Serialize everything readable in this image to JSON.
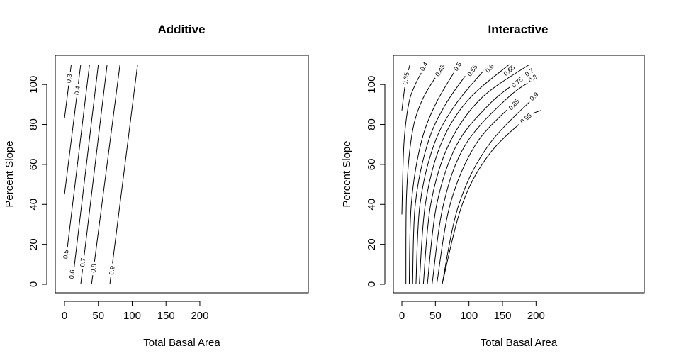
{
  "chart_data": [
    {
      "type": "contour",
      "title": "Additive",
      "xlabel": "Total Basal Area",
      "ylabel": "Percent Slope",
      "xlim": [
        0,
        210
      ],
      "ylim": [
        0,
        110
      ],
      "xticks": [
        0,
        50,
        100,
        150,
        200
      ],
      "yticks": [
        0,
        20,
        40,
        60,
        80,
        100
      ],
      "xtick_labels": [
        "0",
        "50",
        "100",
        "150",
        "200"
      ],
      "ytick_labels": [
        "0",
        "20",
        "40",
        "60",
        "80",
        "100"
      ],
      "levels": [
        {
          "label": "0.3",
          "points": [
            [
              0,
              83
            ],
            [
              10,
              110
            ]
          ],
          "label_at": [
            7,
            103
          ]
        },
        {
          "label": "0.4",
          "points": [
            [
              0,
              45
            ],
            [
              24,
              110
            ]
          ],
          "label_at": [
            19,
            97
          ]
        },
        {
          "label": "0.5",
          "points": [
            [
              2,
              12
            ],
            [
              37,
              110
            ]
          ],
          "label_at": [
            2,
            15
          ]
        },
        {
          "label": "0.6",
          "points": [
            [
              12,
              2
            ],
            [
              50,
              110
            ]
          ],
          "label_at": [
            11,
            5
          ]
        },
        {
          "label": "0.7",
          "points": [
            [
              24,
              0
            ],
            [
              63,
              110
            ]
          ],
          "label_at": [
            27,
            11
          ]
        },
        {
          "label": "0.8",
          "points": [
            [
              40,
              0
            ],
            [
              82,
              110
            ]
          ],
          "label_at": [
            43,
            8
          ]
        },
        {
          "label": "0.9",
          "points": [
            [
              67,
              0
            ],
            [
              108,
              110
            ]
          ],
          "label_at": [
            70,
            7
          ]
        }
      ]
    },
    {
      "type": "contour",
      "title": "Interactive",
      "xlabel": "Total Basal Area",
      "ylabel": "Percent Slope",
      "xlim": [
        0,
        210
      ],
      "ylim": [
        0,
        110
      ],
      "xticks": [
        0,
        50,
        100,
        150,
        200
      ],
      "yticks": [
        0,
        20,
        40,
        60,
        80,
        100
      ],
      "xtick_labels": [
        "0",
        "50",
        "100",
        "150",
        "200"
      ],
      "ytick_labels": [
        "0",
        "20",
        "40",
        "60",
        "80",
        "100"
      ],
      "levels": [
        {
          "label": "0.35",
          "points": [
            [
              0,
              87
            ],
            [
              5,
              100
            ],
            [
              12,
              110
            ]
          ],
          "label_at": [
            6,
            103
          ]
        },
        {
          "label": "0.4",
          "points": [
            [
              0,
              35
            ],
            [
              3,
              70
            ],
            [
              10,
              90
            ],
            [
              20,
              100
            ],
            [
              36,
              110
            ]
          ],
          "label_at": [
            33,
            109
          ]
        },
        {
          "label": "0.45",
          "points": [
            [
              6,
              0
            ],
            [
              7,
              45
            ],
            [
              15,
              75
            ],
            [
              30,
              92
            ],
            [
              55,
              106
            ],
            [
              64,
              110
            ]
          ],
          "label_at": [
            57,
            107
          ]
        },
        {
          "label": "0.5",
          "points": [
            [
              11,
              0
            ],
            [
              14,
              40
            ],
            [
              28,
              70
            ],
            [
              50,
              90
            ],
            [
              85,
              110
            ]
          ],
          "label_at": [
            83,
            109
          ]
        },
        {
          "label": "0.55",
          "points": [
            [
              16,
              0
            ],
            [
              20,
              40
            ],
            [
              38,
              70
            ],
            [
              65,
              90
            ],
            [
              105,
              109
            ]
          ],
          "label_at": [
            105,
            107
          ]
        },
        {
          "label": "0.6",
          "points": [
            [
              21,
              0
            ],
            [
              27,
              40
            ],
            [
              48,
              70
            ],
            [
              80,
              90
            ],
            [
              130,
              110
            ]
          ],
          "label_at": [
            131,
            108
          ]
        },
        {
          "label": "0.65",
          "points": [
            [
              26,
              0
            ],
            [
              35,
              40
            ],
            [
              58,
              70
            ],
            [
              98,
              92
            ],
            [
              160,
              110
            ]
          ],
          "label_at": [
            160,
            107
          ]
        },
        {
          "label": "0.7",
          "points": [
            [
              32,
              0
            ],
            [
              43,
              40
            ],
            [
              70,
              70
            ],
            [
              118,
              93
            ],
            [
              190,
              110
            ]
          ],
          "label_at": [
            190,
            106
          ]
        },
        {
          "label": "0.75",
          "points": [
            [
              38,
              0
            ],
            [
              52,
              40
            ],
            [
              82,
              70
            ],
            [
              130,
              90
            ],
            [
              170,
              101
            ]
          ],
          "label_at": [
            172,
            101
          ]
        },
        {
          "label": "0.8",
          "points": [
            [
              45,
              0
            ],
            [
              62,
              40
            ],
            [
              95,
              70
            ],
            [
              160,
              94
            ],
            [
              205,
              104
            ]
          ],
          "label_at": [
            195,
            103
          ]
        },
        {
          "label": "0.85",
          "points": [
            [
              52,
              0
            ],
            [
              72,
              40
            ],
            [
              110,
              70
            ],
            [
              165,
              90
            ]
          ],
          "label_at": [
            167,
            90
          ]
        },
        {
          "label": "0.9",
          "points": [
            [
              60,
              0
            ],
            [
              85,
              40
            ],
            [
              130,
              70
            ],
            [
              205,
              96
            ]
          ],
          "label_at": [
            197,
            94
          ]
        },
        {
          "label": "0.95",
          "points": [
            [
              60,
              0
            ],
            [
              90,
              40
            ],
            [
              130,
              65
            ],
            [
              185,
              83
            ],
            [
              207,
              87
            ]
          ],
          "label_at": [
            185,
            83
          ]
        }
      ]
    }
  ]
}
